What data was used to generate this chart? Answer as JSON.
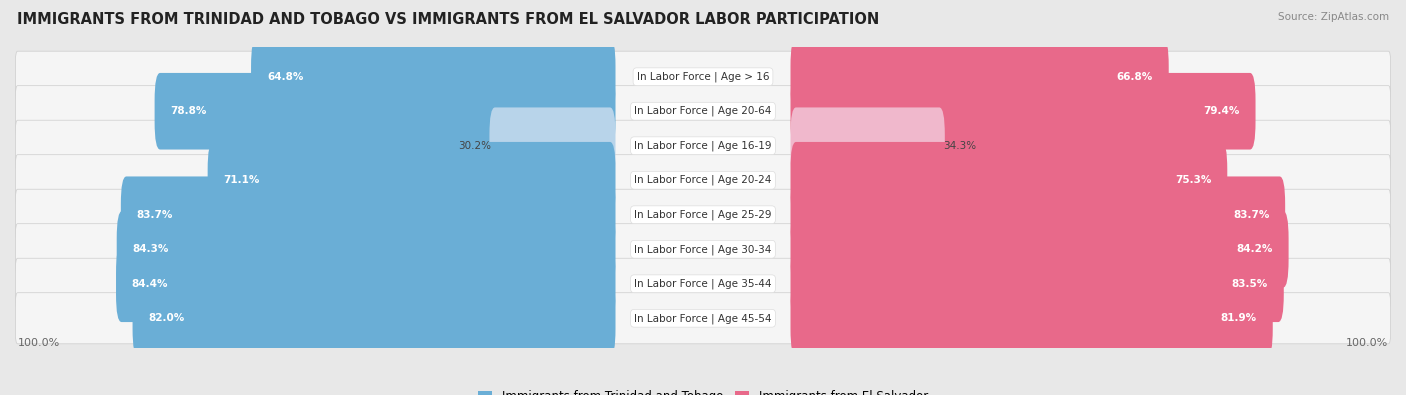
{
  "title": "IMMIGRANTS FROM TRINIDAD AND TOBAGO VS IMMIGRANTS FROM EL SALVADOR LABOR PARTICIPATION",
  "source": "Source: ZipAtlas.com",
  "categories": [
    "In Labor Force | Age > 16",
    "In Labor Force | Age 20-64",
    "In Labor Force | Age 16-19",
    "In Labor Force | Age 20-24",
    "In Labor Force | Age 25-29",
    "In Labor Force | Age 30-34",
    "In Labor Force | Age 35-44",
    "In Labor Force | Age 45-54"
  ],
  "left_values": [
    64.8,
    78.8,
    30.2,
    71.1,
    83.7,
    84.3,
    84.4,
    82.0
  ],
  "right_values": [
    66.8,
    79.4,
    34.3,
    75.3,
    83.7,
    84.2,
    83.5,
    81.9
  ],
  "left_color": "#6aaed6",
  "right_color": "#e8698a",
  "left_color_light": "#b8d4ea",
  "right_color_light": "#f0b8cc",
  "left_label": "Immigrants from Trinidad and Tobago",
  "right_label": "Immigrants from El Salvador",
  "bg_color": "#e8e8e8",
  "row_bg_color": "#f0f0f0",
  "max_value": 100.0,
  "title_fontsize": 10.5,
  "label_fontsize": 7.5,
  "value_fontsize": 7.5,
  "legend_fontsize": 8.5,
  "light_rows": [
    2
  ]
}
